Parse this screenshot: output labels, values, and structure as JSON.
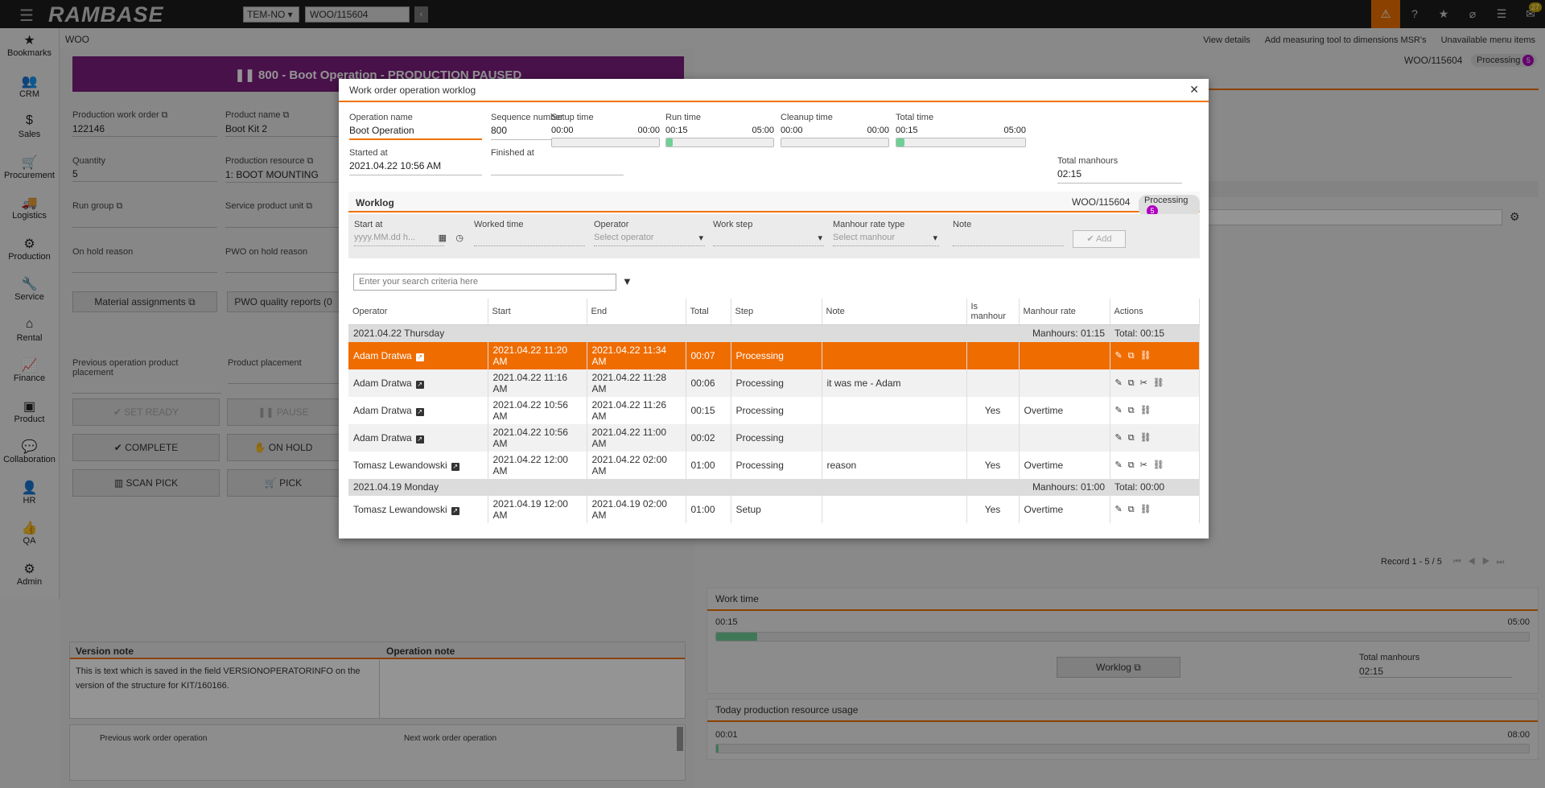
{
  "topbar": {
    "logo": "RAMBASE",
    "company": "TEM-NO",
    "search_value": "WOO/115604",
    "mail_badge": "27"
  },
  "sidebar": {
    "items": [
      {
        "label": "Bookmarks",
        "icon": "star-icon",
        "glyph": "★"
      },
      {
        "label": "CRM",
        "icon": "users-icon",
        "glyph": "👥"
      },
      {
        "label": "Sales",
        "icon": "money-bag-icon",
        "glyph": "$"
      },
      {
        "label": "Procurement",
        "icon": "cart-icon",
        "glyph": "🛒"
      },
      {
        "label": "Logistics",
        "icon": "truck-icon",
        "glyph": "🚚"
      },
      {
        "label": "Production",
        "icon": "cubes-icon",
        "glyph": "⚙"
      },
      {
        "label": "Service",
        "icon": "wrench-icon",
        "glyph": "🔧"
      },
      {
        "label": "Rental",
        "icon": "rental-icon",
        "glyph": "⌂"
      },
      {
        "label": "Finance",
        "icon": "chart-icon",
        "glyph": "📈"
      },
      {
        "label": "Product",
        "icon": "box-icon",
        "glyph": "▣"
      },
      {
        "label": "Collaboration",
        "icon": "comments-icon",
        "glyph": "💬"
      },
      {
        "label": "HR",
        "icon": "person-icon",
        "glyph": "👤"
      },
      {
        "label": "QA",
        "icon": "thumbs-up-icon",
        "glyph": "👍"
      },
      {
        "label": "Admin",
        "icon": "gear-icon",
        "glyph": "⚙"
      }
    ]
  },
  "breadcrumb": "WOO",
  "right_links": [
    "View details",
    "Add measuring tool to dimensions MSR's",
    "Unavailable menu items"
  ],
  "left": {
    "banner": "❚❚ 800 - Boot Operation - PRODUCTION PAUSED",
    "production_work_order_label": "Production work order",
    "production_work_order": "122146",
    "product_name_label": "Product name",
    "product_name": "Boot Kit 2",
    "quantity_label": "Quantity",
    "quantity": "5",
    "production_resource_label": "Production resource",
    "production_resource": "1: BOOT MOUNTING",
    "run_group_label": "Run group",
    "service_product_unit_label": "Service product unit",
    "on_hold_reason_label": "On hold reason",
    "pwo_on_hold_reason_label": "PWO on hold reason",
    "material_assignments": "Material assignments",
    "pwo_quality_reports": "PWO quality reports (0",
    "prev_op_placement_label": "Previous operation product placement",
    "product_placement_label": "Product placement",
    "set_ready": "SET READY",
    "pause": "PAUSE",
    "complete": "COMPLETE",
    "on_hold": "ON HOLD",
    "scan_pick": "SCAN PICK",
    "pick": "PICK",
    "version_note_label": "Version note",
    "operation_note_label": "Operation note",
    "version_note": "This is text which is saved in the field VERSIONOPERATORINFO on the version of the structure for KIT/160166.",
    "prev_wo_op": "Previous work order operation",
    "next_wo_op": "Next work order operation"
  },
  "right": {
    "woo": "WOO/115604",
    "status": "Processing",
    "status_count": "5",
    "record_text": "Record 1 - 5 / 5",
    "work_time_label": "Work time",
    "work_time_start": "00:15",
    "work_time_end": "05:00",
    "work_time_fraction": 0.05,
    "worklog_button": "Worklog",
    "total_manhours_label": "Total manhours",
    "total_manhours": "02:15",
    "today_usage_label": "Today production resource usage",
    "usage_start": "00:01",
    "usage_end": "08:00",
    "usage_fraction": 0.003
  },
  "modal": {
    "title": "Work order operation worklog",
    "operation_name_label": "Operation name",
    "operation_name": "Boot Operation",
    "sequence_number_label": "Sequence number",
    "sequence_number": "800",
    "started_at_label": "Started at",
    "started_at": "2021.04.22 10:56 AM",
    "finished_at_label": "Finished at",
    "finished_at": "",
    "times": [
      {
        "label": "Setup time",
        "value": "00:00",
        "max": "00:00",
        "fraction": 0
      },
      {
        "label": "Run time",
        "value": "00:15",
        "max": "05:00",
        "fraction": 0.05
      },
      {
        "label": "Cleanup time",
        "value": "00:00",
        "max": "00:00",
        "fraction": 0
      },
      {
        "label": "Total time",
        "value": "00:15",
        "max": "05:00",
        "fraction": 0.05
      }
    ],
    "total_manhours_label": "Total manhours",
    "total_manhours": "02:15",
    "worklog_title": "Worklog",
    "woo": "WOO/115604",
    "status": "Processing",
    "status_count": "5",
    "add_form": {
      "start_at_label": "Start at",
      "start_at_placeholder": "yyyy.MM.dd h...",
      "worked_time_label": "Worked time",
      "operator_label": "Operator",
      "operator_placeholder": "Select operator",
      "work_step_label": "Work step",
      "manhour_rate_type_label": "Manhour rate type",
      "manhour_rate_placeholder": "Select manhour",
      "note_label": "Note",
      "add_button": "✔ Add"
    },
    "search_placeholder": "Enter your search criteria here",
    "columns": [
      "Operator",
      "Start",
      "End",
      "Total",
      "Step",
      "Note",
      "Is manhour",
      "Manhour rate",
      "Actions"
    ],
    "groups": [
      {
        "date": "2021.04.22 Thursday",
        "manhours": "Manhours: 01:15",
        "total": "Total: 00:15",
        "rows": [
          {
            "operator": "Adam Dratwa",
            "start": "2021.04.22 11:20 AM",
            "end": "2021.04.22 11:34 AM",
            "total": "00:07",
            "step": "Processing",
            "note": "",
            "is_manhour": "",
            "rate": "",
            "actions": 3
          },
          {
            "operator": "Adam Dratwa",
            "start": "2021.04.22 11:16 AM",
            "end": "2021.04.22 11:28 AM",
            "total": "00:06",
            "step": "Processing",
            "note": "it was me - Adam",
            "is_manhour": "",
            "rate": "",
            "actions": 4
          },
          {
            "operator": "Adam Dratwa",
            "start": "2021.04.22 10:56 AM",
            "end": "2021.04.22 11:26 AM",
            "total": "00:15",
            "step": "Processing",
            "note": "",
            "is_manhour": "Yes",
            "rate": "Overtime",
            "actions": 3
          },
          {
            "operator": "Adam Dratwa",
            "start": "2021.04.22 10:56 AM",
            "end": "2021.04.22 11:00 AM",
            "total": "00:02",
            "step": "Processing",
            "note": "",
            "is_manhour": "",
            "rate": "",
            "actions": 3
          },
          {
            "operator": "Tomasz Lewandowski",
            "start": "2021.04.22 12:00 AM",
            "end": "2021.04.22 02:00 AM",
            "total": "01:00",
            "step": "Processing",
            "note": "reason",
            "is_manhour": "Yes",
            "rate": "Overtime",
            "actions": 4
          }
        ]
      },
      {
        "date": "2021.04.19 Monday",
        "manhours": "Manhours: 01:00",
        "total": "Total: 00:00",
        "rows": [
          {
            "operator": "Tomasz Lewandowski",
            "start": "2021.04.19 12:00 AM",
            "end": "2021.04.19 02:00 AM",
            "total": "01:00",
            "step": "Setup",
            "note": "",
            "is_manhour": "Yes",
            "rate": "Overtime",
            "actions": 3
          }
        ]
      }
    ]
  },
  "colors": {
    "accent": "#ef7300",
    "paused_banner": "#7d1e80",
    "selected_row": "#ef6c00",
    "progress": "#6fcf97",
    "badge": "#b000c0"
  }
}
